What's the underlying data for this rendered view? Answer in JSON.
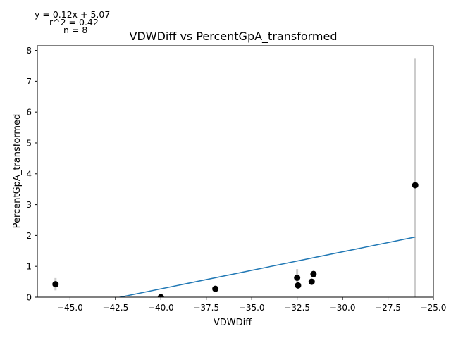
{
  "chart_data": {
    "type": "scatter",
    "title": "VDWDiff vs PercentGpA_transformed",
    "xlabel": "VDWDiff",
    "ylabel": "PercentGpA_transformed",
    "xlim": [
      -46.8,
      -25.0
    ],
    "ylim": [
      0,
      8.15
    ],
    "x_ticks": [
      -45.0,
      -42.5,
      -40.0,
      -37.5,
      -35.0,
      -32.5,
      -30.0,
      -27.5,
      -25.0
    ],
    "y_ticks": [
      0,
      1,
      2,
      3,
      4,
      5,
      6,
      7,
      8
    ],
    "grid": false,
    "annotations": [
      "y = 0.12x + 5.07",
      "r^2 = 0.42",
      "n = 8"
    ],
    "points": [
      {
        "x": -45.8,
        "y": 0.42,
        "err": 0.2
      },
      {
        "x": -40.0,
        "y": 0.0,
        "err": 0.0
      },
      {
        "x": -37.0,
        "y": 0.27,
        "err": 0.0
      },
      {
        "x": -32.5,
        "y": 0.63,
        "err": 0.28
      },
      {
        "x": -32.45,
        "y": 0.38,
        "err": 0.0
      },
      {
        "x": -31.7,
        "y": 0.5,
        "err": 0.0
      },
      {
        "x": -31.6,
        "y": 0.75,
        "err": 0.0
      },
      {
        "x": -26.0,
        "y": 3.63,
        "err": 4.1
      }
    ],
    "fit": {
      "slope": 0.12,
      "intercept": 5.07,
      "x_range": [
        -46.8,
        -26.0
      ]
    },
    "colors": {
      "points": "#000000",
      "fit_line": "#1f77b4",
      "error_bars": "#cccccc"
    }
  }
}
